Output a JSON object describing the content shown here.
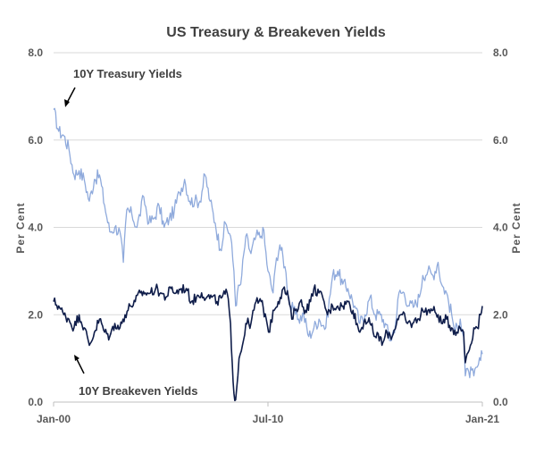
{
  "chart_data": {
    "type": "line",
    "title": "US Treasury & Breakeven Yields",
    "ylabel_left": "Per Cent",
    "ylabel_right": "Per Cent",
    "ylim": [
      0,
      8
    ],
    "yticks": [
      "0.0",
      "2.0",
      "4.0",
      "6.0",
      "8.0"
    ],
    "xlim": [
      "2000-01",
      "2021-01"
    ],
    "xticks": [
      {
        "label": "Jan-00",
        "x": "2000-01"
      },
      {
        "label": "Jul-10",
        "x": "2010-07"
      },
      {
        "label": "Jan-21",
        "x": "2021-01"
      }
    ],
    "grid": "horizontal",
    "legend": "none",
    "annotations": [
      {
        "text": "10Y Treasury Yields",
        "series": "10Y Treasury Yields"
      },
      {
        "text": "10Y Breakeven Yields",
        "series": "10Y Breakeven Yields"
      }
    ],
    "series": [
      {
        "name": "10Y Treasury Yields",
        "color": "#8faadc",
        "points": [
          [
            "2000-01",
            6.7
          ],
          [
            "2000-04",
            6.2
          ],
          [
            "2000-07",
            6.1
          ],
          [
            "2000-10",
            5.8
          ],
          [
            "2001-01",
            5.2
          ],
          [
            "2001-04",
            5.3
          ],
          [
            "2001-07",
            5.1
          ],
          [
            "2001-10",
            4.6
          ],
          [
            "2002-01",
            5.1
          ],
          [
            "2002-04",
            5.2
          ],
          [
            "2002-07",
            4.5
          ],
          [
            "2002-10",
            3.9
          ],
          [
            "2003-01",
            4.0
          ],
          [
            "2003-04",
            3.9
          ],
          [
            "2003-06",
            3.2
          ],
          [
            "2003-08",
            4.4
          ],
          [
            "2003-11",
            4.3
          ],
          [
            "2004-02",
            4.0
          ],
          [
            "2004-06",
            4.7
          ],
          [
            "2004-09",
            4.1
          ],
          [
            "2004-12",
            4.2
          ],
          [
            "2005-03",
            4.5
          ],
          [
            "2005-06",
            4.0
          ],
          [
            "2005-09",
            4.2
          ],
          [
            "2005-12",
            4.4
          ],
          [
            "2006-03",
            4.8
          ],
          [
            "2006-06",
            5.1
          ],
          [
            "2006-09",
            4.6
          ],
          [
            "2006-12",
            4.6
          ],
          [
            "2007-03",
            4.6
          ],
          [
            "2007-06",
            5.2
          ],
          [
            "2007-09",
            4.6
          ],
          [
            "2007-12",
            4.1
          ],
          [
            "2008-03",
            3.5
          ],
          [
            "2008-06",
            4.1
          ],
          [
            "2008-09",
            3.8
          ],
          [
            "2008-11",
            3.0
          ],
          [
            "2008-12",
            2.2
          ],
          [
            "2009-01",
            2.5
          ],
          [
            "2009-03",
            2.7
          ],
          [
            "2009-06",
            3.8
          ],
          [
            "2009-09",
            3.4
          ],
          [
            "2009-12",
            3.8
          ],
          [
            "2010-03",
            3.8
          ],
          [
            "2010-04",
            4.0
          ],
          [
            "2010-07",
            3.0
          ],
          [
            "2010-10",
            2.5
          ],
          [
            "2010-12",
            3.3
          ],
          [
            "2011-02",
            3.6
          ],
          [
            "2011-05",
            3.1
          ],
          [
            "2011-08",
            2.2
          ],
          [
            "2011-10",
            2.1
          ],
          [
            "2012-01",
            1.9
          ],
          [
            "2012-04",
            2.0
          ],
          [
            "2012-07",
            1.5
          ],
          [
            "2012-10",
            1.7
          ],
          [
            "2013-01",
            1.9
          ],
          [
            "2013-05",
            1.7
          ],
          [
            "2013-09",
            2.9
          ],
          [
            "2013-12",
            3.0
          ],
          [
            "2014-03",
            2.7
          ],
          [
            "2014-06",
            2.6
          ],
          [
            "2014-10",
            2.2
          ],
          [
            "2015-01",
            1.8
          ],
          [
            "2015-04",
            2.0
          ],
          [
            "2015-07",
            2.4
          ],
          [
            "2015-10",
            2.0
          ],
          [
            "2016-01",
            2.0
          ],
          [
            "2016-04",
            1.8
          ],
          [
            "2016-07",
            1.4
          ],
          [
            "2016-10",
            1.8
          ],
          [
            "2016-12",
            2.5
          ],
          [
            "2017-03",
            2.5
          ],
          [
            "2017-06",
            2.2
          ],
          [
            "2017-09",
            2.2
          ],
          [
            "2017-12",
            2.4
          ],
          [
            "2018-02",
            2.9
          ],
          [
            "2018-05",
            3.0
          ],
          [
            "2018-08",
            2.9
          ],
          [
            "2018-11",
            3.2
          ],
          [
            "2019-01",
            2.7
          ],
          [
            "2019-04",
            2.5
          ],
          [
            "2019-07",
            2.0
          ],
          [
            "2019-09",
            1.6
          ],
          [
            "2019-12",
            1.9
          ],
          [
            "2020-02",
            1.5
          ],
          [
            "2020-03",
            0.6
          ],
          [
            "2020-05",
            0.7
          ],
          [
            "2020-08",
            0.6
          ],
          [
            "2020-10",
            0.8
          ],
          [
            "2020-12",
            0.95
          ],
          [
            "2021-01",
            1.1
          ]
        ]
      },
      {
        "name": "10Y Breakeven Yields",
        "color": "#0f1d4a",
        "points": [
          [
            "2000-01",
            2.3
          ],
          [
            "2000-04",
            2.2
          ],
          [
            "2000-07",
            2.0
          ],
          [
            "2000-10",
            1.9
          ],
          [
            "2001-01",
            1.7
          ],
          [
            "2001-04",
            2.0
          ],
          [
            "2001-07",
            1.7
          ],
          [
            "2001-10",
            1.3
          ],
          [
            "2002-01",
            1.6
          ],
          [
            "2002-04",
            1.9
          ],
          [
            "2002-07",
            1.6
          ],
          [
            "2002-10",
            1.5
          ],
          [
            "2003-01",
            1.8
          ],
          [
            "2003-04",
            1.7
          ],
          [
            "2003-07",
            2.0
          ],
          [
            "2003-10",
            2.2
          ],
          [
            "2004-01",
            2.3
          ],
          [
            "2004-04",
            2.5
          ],
          [
            "2004-07",
            2.5
          ],
          [
            "2004-10",
            2.5
          ],
          [
            "2005-01",
            2.6
          ],
          [
            "2005-04",
            2.5
          ],
          [
            "2005-07",
            2.4
          ],
          [
            "2005-10",
            2.6
          ],
          [
            "2006-01",
            2.5
          ],
          [
            "2006-04",
            2.6
          ],
          [
            "2006-07",
            2.6
          ],
          [
            "2006-10",
            2.3
          ],
          [
            "2007-01",
            2.4
          ],
          [
            "2007-04",
            2.5
          ],
          [
            "2007-07",
            2.4
          ],
          [
            "2007-10",
            2.4
          ],
          [
            "2008-01",
            2.3
          ],
          [
            "2008-04",
            2.4
          ],
          [
            "2008-07",
            2.5
          ],
          [
            "2008-09",
            1.8
          ],
          [
            "2008-10",
            0.9
          ],
          [
            "2008-11",
            0.2
          ],
          [
            "2008-12",
            0.05
          ],
          [
            "2009-02",
            1.0
          ],
          [
            "2009-04",
            1.3
          ],
          [
            "2009-06",
            1.8
          ],
          [
            "2009-09",
            1.8
          ],
          [
            "2009-12",
            2.3
          ],
          [
            "2010-03",
            2.3
          ],
          [
            "2010-06",
            1.9
          ],
          [
            "2010-08",
            1.6
          ],
          [
            "2010-10",
            2.1
          ],
          [
            "2011-01",
            2.3
          ],
          [
            "2011-04",
            2.6
          ],
          [
            "2011-07",
            2.4
          ],
          [
            "2011-09",
            1.9
          ],
          [
            "2011-11",
            2.1
          ],
          [
            "2012-02",
            2.3
          ],
          [
            "2012-05",
            2.1
          ],
          [
            "2012-08",
            2.3
          ],
          [
            "2012-10",
            2.6
          ],
          [
            "2013-01",
            2.5
          ],
          [
            "2013-04",
            2.3
          ],
          [
            "2013-06",
            2.0
          ],
          [
            "2013-09",
            2.2
          ],
          [
            "2013-12",
            2.2
          ],
          [
            "2014-03",
            2.2
          ],
          [
            "2014-06",
            2.3
          ],
          [
            "2014-09",
            2.1
          ],
          [
            "2014-12",
            1.7
          ],
          [
            "2015-01",
            1.6
          ],
          [
            "2015-04",
            1.9
          ],
          [
            "2015-07",
            1.8
          ],
          [
            "2015-10",
            1.5
          ],
          [
            "2016-01",
            1.5
          ],
          [
            "2016-02",
            1.3
          ],
          [
            "2016-05",
            1.6
          ],
          [
            "2016-08",
            1.5
          ],
          [
            "2016-11",
            1.9
          ],
          [
            "2017-02",
            2.0
          ],
          [
            "2017-05",
            1.8
          ],
          [
            "2017-08",
            1.8
          ],
          [
            "2017-11",
            1.9
          ],
          [
            "2018-02",
            2.1
          ],
          [
            "2018-05",
            2.1
          ],
          [
            "2018-08",
            2.1
          ],
          [
            "2018-11",
            2.0
          ],
          [
            "2019-01",
            1.8
          ],
          [
            "2019-04",
            1.9
          ],
          [
            "2019-07",
            1.7
          ],
          [
            "2019-10",
            1.6
          ],
          [
            "2019-12",
            1.7
          ],
          [
            "2020-02",
            1.6
          ],
          [
            "2020-03",
            0.9
          ],
          [
            "2020-04",
            1.1
          ],
          [
            "2020-06",
            1.3
          ],
          [
            "2020-08",
            1.7
          ],
          [
            "2020-10",
            1.7
          ],
          [
            "2020-12",
            2.0
          ],
          [
            "2021-01",
            2.2
          ]
        ]
      }
    ]
  }
}
